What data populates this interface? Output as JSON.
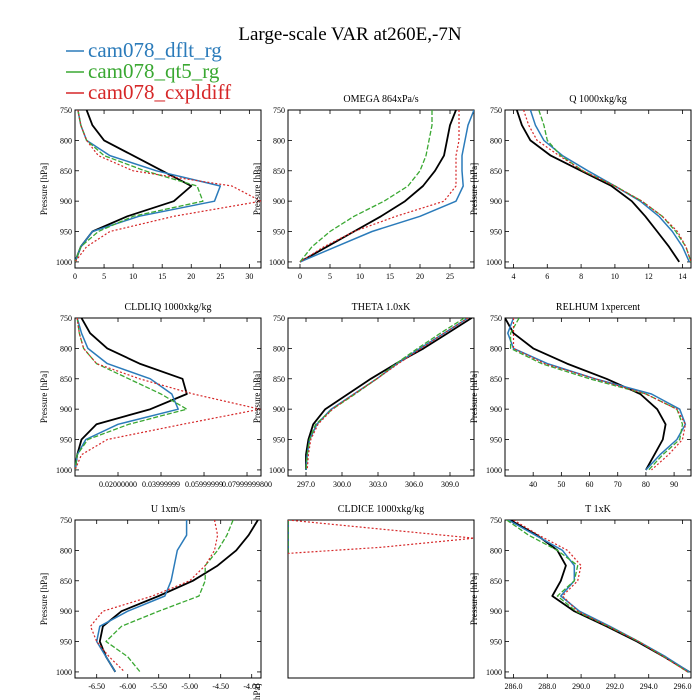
{
  "title": "Large-scale VAR at260E,-7N",
  "legend": [
    {
      "name": "cam078_dflt_rg",
      "color": "#2b7bba"
    },
    {
      "name": "cam078_qt5_rg",
      "color": "#3aa832"
    },
    {
      "name": "cam078_cxpldiff",
      "color": "#d62728"
    }
  ],
  "series_colors": [
    "#000000",
    "#2b7bba",
    "#3aa832",
    "#d62728"
  ],
  "chart_data": [
    {
      "type": "line",
      "title": "",
      "xlim": [
        0,
        32
      ],
      "ylim": [
        750,
        1010
      ],
      "xticks": [
        0,
        5,
        10,
        15,
        20,
        25,
        30
      ],
      "xtick_labels": [
        "0",
        "5",
        "10",
        "15",
        "20",
        "25",
        "30"
      ],
      "yticks": [
        750,
        800,
        850,
        900,
        950,
        1000
      ],
      "ylabel": "Pressure [hPa]",
      "y_reversed": true,
      "y": [
        750,
        775,
        800,
        825,
        850,
        875,
        900,
        925,
        950,
        975,
        1000
      ],
      "series": [
        {
          "values": [
            2,
            3,
            5,
            10,
            15,
            20,
            17,
            9,
            3,
            1,
            0
          ]
        },
        {
          "values": [
            0.5,
            1,
            2,
            6,
            14,
            25,
            24,
            11,
            3,
            1,
            0
          ]
        },
        {
          "values": [
            0.5,
            1,
            2,
            5,
            12,
            21,
            22,
            10,
            4,
            1,
            0
          ]
        },
        {
          "values": [
            0.5,
            1,
            2,
            4,
            10,
            27,
            32,
            17,
            6,
            2,
            0
          ]
        }
      ]
    },
    {
      "type": "line",
      "title": "OMEGA  864xPa/s",
      "xlim": [
        -2,
        29
      ],
      "ylim": [
        750,
        1010
      ],
      "xticks": [
        0,
        5,
        10,
        15,
        20,
        25
      ],
      "xtick_labels": [
        "0",
        "5",
        "10",
        "15",
        "20",
        "25"
      ],
      "yticks": [
        750,
        800,
        850,
        900,
        950,
        1000
      ],
      "ylabel": "Pressure [hPa]",
      "y_reversed": true,
      "y": [
        750,
        775,
        800,
        825,
        850,
        875,
        900,
        925,
        950,
        975,
        1000
      ],
      "series": [
        {
          "values": [
            26,
            25,
            24.5,
            24,
            22.5,
            20.5,
            17.5,
            13.5,
            9,
            4.5,
            0
          ]
        },
        {
          "values": [
            29,
            28,
            27.5,
            27,
            27,
            27.2,
            26,
            20,
            12,
            6,
            0
          ]
        },
        {
          "values": [
            22,
            22,
            21.5,
            21,
            20,
            18,
            14,
            9,
            5,
            2,
            0
          ]
        },
        {
          "values": [
            26.5,
            26.5,
            26.5,
            26,
            26,
            26,
            24,
            16,
            9,
            4,
            0
          ]
        }
      ]
    },
    {
      "type": "line",
      "title": "Q  1000xkg/kg",
      "xlim": [
        3.5,
        14.5
      ],
      "ylim": [
        750,
        1010
      ],
      "xticks": [
        4,
        6,
        8,
        10,
        12,
        14
      ],
      "xtick_labels": [
        "4",
        "6",
        "8",
        "10",
        "12",
        "14"
      ],
      "yticks": [
        750,
        800,
        850,
        900,
        950,
        1000
      ],
      "ylabel": "Pressure [hPa]",
      "y_reversed": true,
      "y": [
        750,
        775,
        800,
        825,
        850,
        875,
        900,
        925,
        950,
        975,
        1000
      ],
      "series": [
        {
          "values": [
            4.2,
            4.5,
            5,
            6.2,
            8,
            9.8,
            11,
            11.8,
            12.5,
            13.2,
            13.8
          ]
        },
        {
          "values": [
            5,
            5.3,
            5.8,
            6.9,
            8.4,
            10,
            11.5,
            12.6,
            13.4,
            14,
            14.4
          ]
        },
        {
          "values": [
            5.5,
            5.8,
            6,
            6.8,
            8.1,
            10,
            11.6,
            12.8,
            13.6,
            14.2,
            14.5
          ]
        },
        {
          "values": [
            4.6,
            4.9,
            5.4,
            6.7,
            8.1,
            10,
            11.6,
            12.8,
            13.7,
            14.2,
            14.5
          ]
        }
      ]
    },
    {
      "type": "line",
      "title": "CLDLIQ  1000xkg/kg",
      "xlim": [
        0,
        0.0865
      ],
      "ylim": [
        750,
        1010
      ],
      "xticks": [
        0.02,
        0.04,
        0.06,
        0.08
      ],
      "xtick_labels": [
        "0.02000000",
        "0.03999999",
        "0.05999999",
        "0.07999999800"
      ],
      "yticks": [
        750,
        800,
        850,
        900,
        950,
        1000
      ],
      "ylabel": "Pressure [hPa]",
      "y_reversed": true,
      "y": [
        750,
        775,
        800,
        825,
        850,
        875,
        900,
        925,
        950,
        975,
        1000
      ],
      "series": [
        {
          "values": [
            0.003,
            0.007,
            0.015,
            0.03,
            0.05,
            0.052,
            0.035,
            0.01,
            0.003,
            0.001,
            0
          ]
        },
        {
          "values": [
            0.001,
            0.003,
            0.006,
            0.015,
            0.035,
            0.045,
            0.048,
            0.02,
            0.005,
            0.001,
            0
          ]
        },
        {
          "values": [
            0.001,
            0.002,
            0.004,
            0.01,
            0.025,
            0.04,
            0.052,
            0.025,
            0.006,
            0.001,
            0
          ]
        },
        {
          "values": [
            0.001,
            0.002,
            0.004,
            0.01,
            0.03,
            0.055,
            0.086,
            0.05,
            0.015,
            0.003,
            0
          ]
        }
      ]
    },
    {
      "type": "line",
      "title": "THETA  1.0xK",
      "xlim": [
        295.5,
        311
      ],
      "ylim": [
        750,
        1010
      ],
      "xticks": [
        297,
        300,
        303,
        306,
        309
      ],
      "xtick_labels": [
        "297.0",
        "300.0",
        "303.0",
        "306.0",
        "309.0"
      ],
      "yticks": [
        750,
        800,
        850,
        900,
        950,
        1000
      ],
      "ylabel": "Pressure [hPa]",
      "y_reversed": true,
      "y": [
        750,
        775,
        800,
        825,
        850,
        875,
        900,
        925,
        950,
        975,
        1000
      ],
      "series": [
        {
          "values": [
            310.8,
            308.8,
            306.8,
            304.5,
            302.4,
            300.5,
            298.6,
            297.6,
            297.2,
            297.0,
            297.0
          ]
        },
        {
          "values": [
            310.5,
            308.5,
            306.5,
            304.6,
            302.9,
            301.0,
            299.1,
            297.9,
            297.3,
            297.1,
            297.0
          ]
        },
        {
          "values": [
            310.2,
            308.2,
            306.3,
            304.5,
            302.9,
            301.1,
            299.2,
            297.8,
            297.3,
            297.1,
            297.0
          ]
        },
        {
          "values": [
            310.5,
            308.5,
            306.6,
            304.7,
            302.9,
            301.0,
            299.2,
            298.0,
            297.4,
            297.2,
            297.1
          ]
        }
      ]
    },
    {
      "type": "line",
      "title": "RELHUM  1xpercent",
      "xlim": [
        30,
        96
      ],
      "ylim": [
        750,
        1010
      ],
      "xticks": [
        40,
        50,
        60,
        70,
        80,
        90
      ],
      "xtick_labels": [
        "40",
        "50",
        "60",
        "70",
        "80",
        "90"
      ],
      "yticks": [
        750,
        800,
        850,
        900,
        950,
        1000
      ],
      "ylabel": "Pressure [hPa]",
      "y_reversed": true,
      "y": [
        750,
        775,
        800,
        825,
        850,
        875,
        900,
        925,
        950,
        975,
        1000
      ],
      "series": [
        {
          "values": [
            30,
            33,
            40,
            52,
            66,
            78,
            84,
            87,
            86,
            83,
            80
          ]
        },
        {
          "values": [
            33,
            31,
            33,
            45,
            62,
            82,
            92,
            94,
            91,
            85,
            80
          ]
        },
        {
          "values": [
            35,
            32,
            32,
            43,
            60,
            80,
            91,
            93,
            92,
            86,
            81
          ]
        },
        {
          "values": [
            33,
            33,
            33,
            44,
            62,
            80,
            91,
            94,
            93,
            88,
            82
          ]
        }
      ]
    },
    {
      "type": "line",
      "title": "U  1xm/s",
      "xlim": [
        -6.85,
        -3.85
      ],
      "ylim": [
        750,
        1010
      ],
      "xticks": [
        -6.5,
        -6,
        -5.5,
        -5,
        -4.5,
        -4
      ],
      "xtick_labels": [
        "-6.50",
        "-6.00",
        "-5.50",
        "-5.00",
        "-4.50",
        "-4.00"
      ],
      "yticks": [
        750,
        800,
        850,
        900,
        950,
        1000
      ],
      "ylabel": "Pressure [hPa]",
      "y_reversed": true,
      "y": [
        750,
        775,
        800,
        825,
        850,
        875,
        900,
        925,
        950,
        975,
        1000
      ],
      "series": [
        {
          "values": [
            -3.9,
            -4.05,
            -4.25,
            -4.55,
            -4.95,
            -5.5,
            -6.1,
            -6.4,
            -6.45,
            -6.35,
            -6.2
          ]
        },
        {
          "values": [
            -5.05,
            -5.05,
            -5.2,
            -5.25,
            -5.3,
            -5.4,
            -6.0,
            -6.45,
            -6.5,
            -6.35,
            -6.2
          ]
        },
        {
          "values": [
            -4.3,
            -4.4,
            -4.55,
            -4.75,
            -4.75,
            -4.85,
            -5.5,
            -6.1,
            -6.35,
            -6.0,
            -5.8
          ]
        },
        {
          "values": [
            -4.6,
            -4.55,
            -4.6,
            -4.75,
            -5.0,
            -5.6,
            -6.4,
            -6.6,
            -6.5,
            -6.3,
            -6.05
          ]
        }
      ]
    },
    {
      "type": "line",
      "title": "CLDICE  1000xkg/kg",
      "xlim": [
        0,
        1
      ],
      "ylim": [
        750,
        1010
      ],
      "ylabel": "",
      "y_reversed": true,
      "y": [
        750,
        765,
        780,
        795,
        805
      ],
      "series": [
        {
          "values": [
            0,
            0,
            0,
            0,
            0
          ]
        },
        {
          "values": [
            0,
            0,
            0,
            0,
            0
          ]
        },
        {
          "values": [
            0,
            0,
            0,
            0,
            0
          ]
        },
        {
          "values": [
            0,
            0.5,
            1,
            0.5,
            0
          ]
        }
      ],
      "cut_label": "hPa]"
    },
    {
      "type": "line",
      "title": "T  1xK",
      "xlim": [
        285.5,
        296.5
      ],
      "ylim": [
        750,
        1010
      ],
      "xticks": [
        286,
        288,
        290,
        292,
        294,
        296
      ],
      "xtick_labels": [
        "286.0",
        "288.0",
        "290.0",
        "292.0",
        "294.0",
        "296.0"
      ],
      "yticks": [
        750,
        800,
        850,
        900,
        950,
        1000
      ],
      "ylabel": "Pressure [hPa]",
      "y_reversed": true,
      "y": [
        750,
        775,
        800,
        825,
        850,
        875,
        900,
        925,
        950,
        975,
        1000
      ],
      "series": [
        {
          "values": [
            285.8,
            287.4,
            288.6,
            289.1,
            288.8,
            288.3,
            289.6,
            291.5,
            293.3,
            294.9,
            296.4
          ]
        },
        {
          "values": [
            285.7,
            287.3,
            288.9,
            289.6,
            289.6,
            288.8,
            289.9,
            291.7,
            293.4,
            295.0,
            296.4
          ]
        },
        {
          "values": [
            285.6,
            286.9,
            288.6,
            289.8,
            289.6,
            288.6,
            289.7,
            291.6,
            293.4,
            294.9,
            296.3
          ]
        },
        {
          "values": [
            286.0,
            287.5,
            289.2,
            290.0,
            289.8,
            288.9,
            289.8,
            291.6,
            293.4,
            294.9,
            296.3
          ]
        }
      ]
    }
  ]
}
